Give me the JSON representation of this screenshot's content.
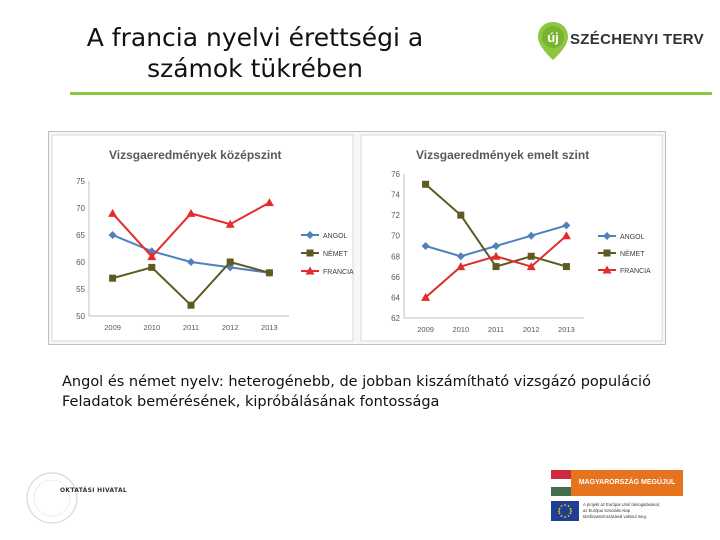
{
  "slide": {
    "title_line1": "A francia nyelvi érettségi a",
    "title_line2": "számok tükrében",
    "brand": "SZÉCHENYI TERV",
    "brand_badge": "új",
    "body_line1": "Angol és német nyelv: heterogénebb, de jobban kiszámítható vizsgázó populáció",
    "body_line2": "Feladatok bemérésének, kipróbálásának fontossága",
    "okt_logo_text": "OKTATÁSI HIVATAL",
    "mm_banner_text": "MAGYARORSZÁG MEGÚJUL",
    "eu_text_line1": "A projekt az Európai Unió támogatásával,",
    "eu_text_line2": "az Európai Szociális Alap",
    "eu_text_line3": "társfinanszírozásával valósul meg."
  },
  "colors": {
    "angol": "#4f81bd",
    "nemet": "#5e5a22",
    "francia": "#e52b2b",
    "accent_green": "#8dc63f"
  },
  "chart_data": [
    {
      "type": "line",
      "title": "Vizsgaeredmények középszint",
      "categories": [
        "2009",
        "2010",
        "2011",
        "2012",
        "2013"
      ],
      "ylim": [
        50,
        75
      ],
      "yticks": [
        50,
        55,
        60,
        65,
        70,
        75
      ],
      "grid": false,
      "legend": "right",
      "series": [
        {
          "name": "ANGOL",
          "values": [
            65,
            62,
            60,
            59,
            58
          ],
          "marker": "diamond",
          "color_key": "angol"
        },
        {
          "name": "NÉMET",
          "values": [
            57,
            59,
            52,
            60,
            58
          ],
          "marker": "square",
          "color_key": "nemet"
        },
        {
          "name": "FRANCIA",
          "values": [
            69,
            61,
            69,
            67,
            71
          ],
          "marker": "triangle",
          "color_key": "francia"
        }
      ]
    },
    {
      "type": "line",
      "title": "Vizsgaeredmények emelt szint",
      "categories": [
        "2009",
        "2010",
        "2011",
        "2012",
        "2013"
      ],
      "ylim": [
        62,
        76
      ],
      "yticks": [
        62,
        64,
        66,
        68,
        70,
        72,
        74,
        76
      ],
      "grid": false,
      "legend": "right",
      "series": [
        {
          "name": "ANGOL",
          "values": [
            69,
            68,
            69,
            70,
            71
          ],
          "marker": "diamond",
          "color_key": "angol"
        },
        {
          "name": "NÉMET",
          "values": [
            75,
            72,
            67,
            68,
            67
          ],
          "marker": "square",
          "color_key": "nemet"
        },
        {
          "name": "FRANCIA",
          "values": [
            64,
            67,
            68,
            67,
            70
          ],
          "marker": "triangle",
          "color_key": "francia"
        }
      ]
    }
  ]
}
